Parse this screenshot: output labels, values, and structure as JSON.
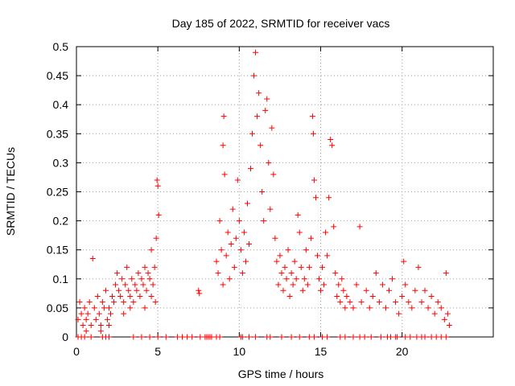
{
  "chart_data": {
    "type": "scatter",
    "title": "Day 185 of 2022, SRMTID for receiver vacs",
    "xlabel": "GPS time / hours",
    "ylabel": "SRMTID / TECUs",
    "xlim": [
      0,
      25.6
    ],
    "ylim": [
      0,
      0.5
    ],
    "x_ticks": [
      0,
      5,
      10,
      15,
      20
    ],
    "y_ticks": [
      0,
      0.05,
      0.1,
      0.15,
      0.2,
      0.25,
      0.3,
      0.35,
      0.4,
      0.45,
      0.5
    ],
    "x_tick_labels": [
      "0",
      "5",
      "10",
      "15",
      "20"
    ],
    "y_tick_labels": [
      "0",
      "0.05",
      "0.1",
      "0.15",
      "0.2",
      "0.25",
      "0.3",
      "0.35",
      "0.4",
      "0.45",
      "0.5"
    ],
    "grid": true,
    "marker": "+",
    "color": "#ff0000",
    "series": [
      {
        "name": "SRMTID",
        "points": [
          [
            0.1,
            0.03
          ],
          [
            0.2,
            0.06
          ],
          [
            0.3,
            0.04
          ],
          [
            0.4,
            0.02
          ],
          [
            0.5,
            0.05
          ],
          [
            0.6,
            0.03
          ],
          [
            0.7,
            0.04
          ],
          [
            0.8,
            0.06
          ],
          [
            0.9,
            0.02
          ],
          [
            1.0,
            0.135
          ],
          [
            1.1,
            0.05
          ],
          [
            1.2,
            0.03
          ],
          [
            1.3,
            0.07
          ],
          [
            1.4,
            0.04
          ],
          [
            1.5,
            0.02
          ],
          [
            1.6,
            0.06
          ],
          [
            1.7,
            0.05
          ],
          [
            1.8,
            0.08
          ],
          [
            1.9,
            0.03
          ],
          [
            2.0,
            0.05
          ],
          [
            2.1,
            0.04
          ],
          [
            2.2,
            0.07
          ],
          [
            2.3,
            0.06
          ],
          [
            2.4,
            0.09
          ],
          [
            2.5,
            0.11
          ],
          [
            2.6,
            0.08
          ],
          [
            2.7,
            0.07
          ],
          [
            2.8,
            0.1
          ],
          [
            2.9,
            0.06
          ],
          [
            3.0,
            0.09
          ],
          [
            3.1,
            0.12
          ],
          [
            3.2,
            0.08
          ],
          [
            3.3,
            0.07
          ],
          [
            3.4,
            0.1
          ],
          [
            3.5,
            0.06
          ],
          [
            3.6,
            0.09
          ],
          [
            3.7,
            0.08
          ],
          [
            3.8,
            0.11
          ],
          [
            3.9,
            0.07
          ],
          [
            4.0,
            0.1
          ],
          [
            4.1,
            0.09
          ],
          [
            4.2,
            0.12
          ],
          [
            4.3,
            0.08
          ],
          [
            4.4,
            0.11
          ],
          [
            4.5,
            0.1
          ],
          [
            4.6,
            0.15
          ],
          [
            4.7,
            0.09
          ],
          [
            4.8,
            0.12
          ],
          [
            4.9,
            0.17
          ],
          [
            4.95,
            0.27
          ],
          [
            5.0,
            0.26
          ],
          [
            5.05,
            0.21
          ],
          [
            4.85,
            0.06
          ],
          [
            4.6,
            0.07
          ],
          [
            4.2,
            0.05
          ],
          [
            3.3,
            0.05
          ],
          [
            2.9,
            0.04
          ],
          [
            1.5,
            0.01
          ],
          [
            0.6,
            0.01
          ],
          [
            2.0,
            0.02
          ],
          [
            7.5,
            0.08
          ],
          [
            7.55,
            0.075
          ],
          [
            8.6,
            0.13
          ],
          [
            8.7,
            0.11
          ],
          [
            8.8,
            0.2
          ],
          [
            8.9,
            0.15
          ],
          [
            9.0,
            0.09
          ],
          [
            9.0,
            0.33
          ],
          [
            9.05,
            0.38
          ],
          [
            9.1,
            0.28
          ],
          [
            9.2,
            0.14
          ],
          [
            9.3,
            0.18
          ],
          [
            9.4,
            0.1
          ],
          [
            9.5,
            0.16
          ],
          [
            9.6,
            0.22
          ],
          [
            9.7,
            0.12
          ],
          [
            9.8,
            0.17
          ],
          [
            9.9,
            0.27
          ],
          [
            10.0,
            0.2
          ],
          [
            10.1,
            0.15
          ],
          [
            10.2,
            0.11
          ],
          [
            10.3,
            0.18
          ],
          [
            10.4,
            0.13
          ],
          [
            10.5,
            0.23
          ],
          [
            10.6,
            0.16
          ],
          [
            10.7,
            0.29
          ],
          [
            10.8,
            0.35
          ],
          [
            10.9,
            0.45
          ],
          [
            11.0,
            0.49
          ],
          [
            11.1,
            0.38
          ],
          [
            11.2,
            0.42
          ],
          [
            11.3,
            0.33
          ],
          [
            11.4,
            0.25
          ],
          [
            11.5,
            0.2
          ],
          [
            11.6,
            0.39
          ],
          [
            11.7,
            0.41
          ],
          [
            11.8,
            0.3
          ],
          [
            11.9,
            0.22
          ],
          [
            12.0,
            0.36
          ],
          [
            12.1,
            0.28
          ],
          [
            12.2,
            0.17
          ],
          [
            12.3,
            0.13
          ],
          [
            12.4,
            0.09
          ],
          [
            12.5,
            0.14
          ],
          [
            12.6,
            0.11
          ],
          [
            12.7,
            0.08
          ],
          [
            12.8,
            0.12
          ],
          [
            12.9,
            0.1
          ],
          [
            13.0,
            0.15
          ],
          [
            13.1,
            0.07
          ],
          [
            13.2,
            0.11
          ],
          [
            13.3,
            0.09
          ],
          [
            13.4,
            0.13
          ],
          [
            13.5,
            0.1
          ],
          [
            13.6,
            0.21
          ],
          [
            13.7,
            0.18
          ],
          [
            13.8,
            0.12
          ],
          [
            13.9,
            0.08
          ],
          [
            14.0,
            0.1
          ],
          [
            14.1,
            0.15
          ],
          [
            14.2,
            0.09
          ],
          [
            14.3,
            0.12
          ],
          [
            14.4,
            0.17
          ],
          [
            14.5,
            0.38
          ],
          [
            14.55,
            0.35
          ],
          [
            14.6,
            0.27
          ],
          [
            14.7,
            0.24
          ],
          [
            14.8,
            0.14
          ],
          [
            14.9,
            0.1
          ],
          [
            15.0,
            0.08
          ],
          [
            15.1,
            0.12
          ],
          [
            15.2,
            0.09
          ],
          [
            15.3,
            0.18
          ],
          [
            15.4,
            0.14
          ],
          [
            15.5,
            0.24
          ],
          [
            15.6,
            0.34
          ],
          [
            15.7,
            0.33
          ],
          [
            15.8,
            0.19
          ],
          [
            15.9,
            0.11
          ],
          [
            16.0,
            0.07
          ],
          [
            16.1,
            0.09
          ],
          [
            16.2,
            0.06
          ],
          [
            16.3,
            0.1
          ],
          [
            16.4,
            0.08
          ],
          [
            16.5,
            0.05
          ],
          [
            16.6,
            0.07
          ],
          [
            16.8,
            0.06
          ],
          [
            17.0,
            0.05
          ],
          [
            17.2,
            0.09
          ],
          [
            17.4,
            0.19
          ],
          [
            17.5,
            0.06
          ],
          [
            17.8,
            0.08
          ],
          [
            18.0,
            0.05
          ],
          [
            18.2,
            0.07
          ],
          [
            18.4,
            0.11
          ],
          [
            18.6,
            0.06
          ],
          [
            18.8,
            0.09
          ],
          [
            19.0,
            0.05
          ],
          [
            19.2,
            0.08
          ],
          [
            19.4,
            0.1
          ],
          [
            19.6,
            0.06
          ],
          [
            19.8,
            0.04
          ],
          [
            20.0,
            0.07
          ],
          [
            20.1,
            0.13
          ],
          [
            20.2,
            0.09
          ],
          [
            20.4,
            0.06
          ],
          [
            20.6,
            0.05
          ],
          [
            20.8,
            0.08
          ],
          [
            21.0,
            0.12
          ],
          [
            21.2,
            0.06
          ],
          [
            21.4,
            0.08
          ],
          [
            21.6,
            0.05
          ],
          [
            21.8,
            0.07
          ],
          [
            22.0,
            0.04
          ],
          [
            22.2,
            0.06
          ],
          [
            22.4,
            0.05
          ],
          [
            22.6,
            0.03
          ],
          [
            22.7,
            0.11
          ],
          [
            22.8,
            0.04
          ],
          [
            22.9,
            0.02
          ]
        ],
        "zero_points_x": [
          0.1,
          0.3,
          0.5,
          0.9,
          1.6,
          1.8,
          2.0,
          3.5,
          4.0,
          4.5,
          5.0,
          5.5,
          6.2,
          6.5,
          6.8,
          7.1,
          7.6,
          7.9,
          8.0,
          8.1,
          8.2,
          8.3,
          8.6,
          8.8,
          10.1,
          10.2,
          10.6,
          11.0,
          11.7,
          11.9,
          12.6,
          13.2,
          13.7,
          14.3,
          14.6,
          15.1,
          15.4,
          16.2,
          16.5,
          17.0,
          17.4,
          17.7,
          18.1,
          18.7,
          19.1,
          19.3,
          19.6,
          19.7,
          20.2,
          20.5,
          20.9,
          21.2,
          21.4,
          21.8,
          22.1,
          22.4,
          22.7
        ]
      }
    ]
  }
}
